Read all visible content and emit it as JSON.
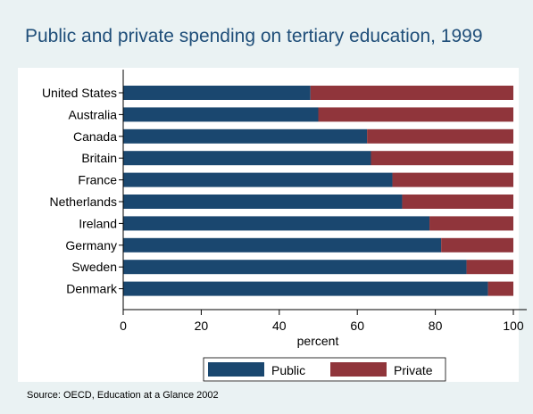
{
  "chart_data": {
    "type": "bar",
    "orientation": "horizontal",
    "stacked": true,
    "title": "Public and private spending on tertiary education, 1999",
    "xlabel": "percent",
    "xlim": [
      0,
      100
    ],
    "xticks": [
      0,
      20,
      40,
      60,
      80,
      100
    ],
    "grid": false,
    "legend": "bottom",
    "categories": [
      "United States",
      "Australia",
      "Canada",
      "Britain",
      "France",
      "Netherlands",
      "Ireland",
      "Germany",
      "Sweden",
      "Denmark"
    ],
    "series": [
      {
        "name": "Public",
        "color": "#1a476f",
        "values": [
          48,
          50,
          62.5,
          63.5,
          69,
          71.5,
          78.5,
          81.5,
          88,
          93.5
        ]
      },
      {
        "name": "Private",
        "color": "#90353b",
        "values": [
          52,
          50,
          37.5,
          36.5,
          31,
          28.5,
          21.5,
          18.5,
          12,
          6.5
        ]
      }
    ],
    "note": "Source:  OECD, Education at a Glance 2002"
  },
  "colors": {
    "background": "#eaf2f3",
    "plot_background": "#ffffff"
  }
}
